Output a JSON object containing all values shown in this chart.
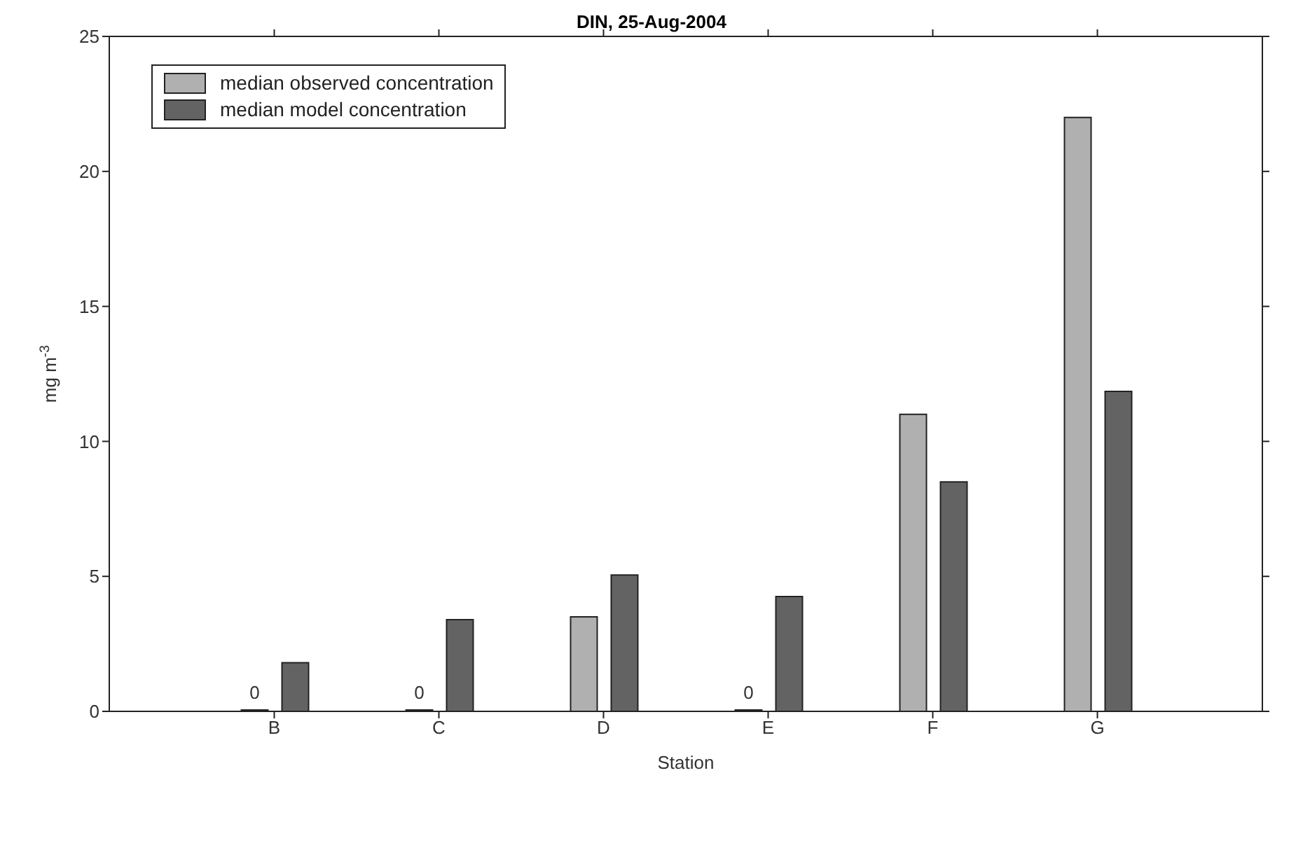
{
  "chart_data": {
    "type": "bar",
    "title": "DIN, 25-Aug-2004",
    "xlabel": "Station",
    "ylabel": "mg m$^{-3}$",
    "categories": [
      "B",
      "C",
      "D",
      "E",
      "F",
      "G"
    ],
    "series": [
      {
        "name": "median observed concentration",
        "color": "#b0b0b0",
        "values": [
          0,
          0,
          3.5,
          0,
          11,
          22
        ],
        "value_labels": [
          "0",
          "0",
          null,
          "0",
          null,
          null
        ]
      },
      {
        "name": "median model concentration",
        "color": "#636363",
        "values": [
          1.8,
          3.4,
          5.05,
          4.25,
          8.5,
          11.85
        ]
      }
    ],
    "ylim": [
      0,
      25
    ],
    "yticks": [
      0,
      5,
      10,
      15,
      20,
      25
    ],
    "grid": false,
    "legend": "top left"
  }
}
